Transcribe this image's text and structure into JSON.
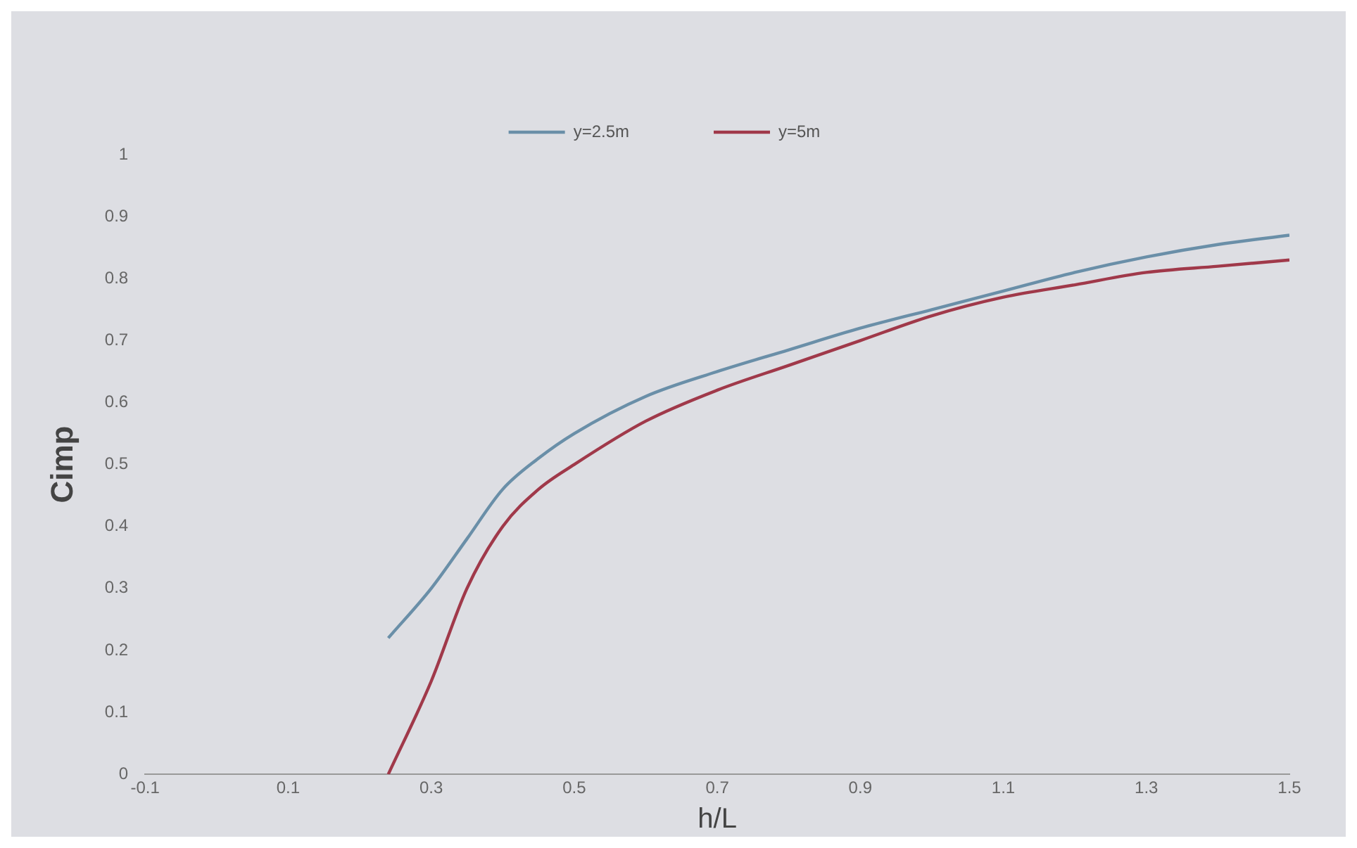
{
  "chart_data": {
    "type": "line",
    "xlabel": "h/L",
    "ylabel": "Cimp",
    "xlim": [
      -0.1,
      1.5
    ],
    "xticks": [
      -0.1,
      0.1,
      0.3,
      0.5,
      0.7,
      0.9,
      1.1,
      1.3,
      1.5
    ],
    "ylim": [
      0,
      1
    ],
    "yticks": [
      0,
      0.1,
      0.2,
      0.3,
      0.4,
      0.5,
      0.6,
      0.7,
      0.8,
      0.9,
      1
    ],
    "grid": false,
    "legend": "top",
    "marker": "none",
    "series": [
      {
        "name": "y=2.5m",
        "color": "#6a8fa8",
        "x": [
          0.24,
          0.3,
          0.35,
          0.4,
          0.45,
          0.5,
          0.6,
          0.7,
          0.8,
          0.9,
          1.0,
          1.1,
          1.2,
          1.3,
          1.4,
          1.5
        ],
        "values": [
          0.22,
          0.3,
          0.38,
          0.46,
          0.51,
          0.55,
          0.61,
          0.65,
          0.685,
          0.72,
          0.75,
          0.78,
          0.81,
          0.835,
          0.855,
          0.87
        ]
      },
      {
        "name": "y=5m",
        "color": "#a0394a",
        "x": [
          0.24,
          0.3,
          0.35,
          0.4,
          0.45,
          0.5,
          0.6,
          0.7,
          0.8,
          0.9,
          1.0,
          1.1,
          1.2,
          1.3,
          1.4,
          1.5
        ],
        "values": [
          0,
          0.15,
          0.3,
          0.4,
          0.46,
          0.5,
          0.57,
          0.62,
          0.66,
          0.7,
          0.74,
          0.77,
          0.79,
          0.81,
          0.82,
          0.83
        ]
      }
    ]
  }
}
